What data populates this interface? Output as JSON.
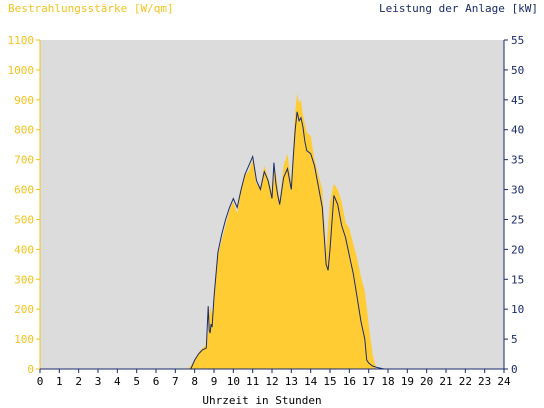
{
  "chart_data": {
    "type": "area",
    "title": "",
    "y_left_label": "Bestrahlungsstärke [W/qm]",
    "y_right_label": "Leistung der Anlage [kW]",
    "xlabel": "Uhrzeit in Stunden",
    "x_ticks": [
      "0",
      "1",
      "2",
      "3",
      "4",
      "5",
      "6",
      "7",
      "8",
      "9",
      "10",
      "11",
      "12",
      "13",
      "14",
      "15",
      "16",
      "17",
      "18",
      "19",
      "20",
      "21",
      "22",
      "23",
      "24"
    ],
    "xlim": [
      0,
      24
    ],
    "ylim_left": [
      0,
      1100
    ],
    "ylim_right": [
      0,
      55
    ],
    "y_left_ticks": [
      "0",
      "100",
      "200",
      "300",
      "400",
      "500",
      "600",
      "700",
      "800",
      "900",
      "1000",
      "1100"
    ],
    "y_right_ticks": [
      "0",
      "5",
      "10",
      "15",
      "20",
      "25",
      "30",
      "35",
      "40",
      "45",
      "50",
      "55"
    ],
    "grid": false,
    "colors": {
      "irradiance": "#ffcc33",
      "power": "#1a2a6c",
      "plot_background": "#dcdcdc",
      "left_axis": "#f5c21b",
      "right_axis": "#1a2a6c"
    },
    "series": [
      {
        "axis": "left",
        "color": "#ffcc33",
        "x": [
          0,
          7.6,
          7.8,
          8.0,
          8.2,
          8.4,
          8.6,
          8.7,
          8.8,
          8.9,
          9.0,
          9.2,
          9.4,
          9.6,
          9.8,
          10.0,
          10.2,
          10.4,
          10.6,
          10.8,
          11.0,
          11.2,
          11.4,
          11.6,
          11.8,
          12.0,
          12.1,
          12.2,
          12.3,
          12.4,
          12.6,
          12.8,
          13.0,
          13.1,
          13.2,
          13.3,
          13.4,
          13.5,
          13.6,
          13.7,
          13.8,
          14.0,
          14.2,
          14.4,
          14.6,
          14.8,
          15.0,
          15.2,
          15.4,
          15.6,
          15.8,
          16.0,
          16.2,
          16.4,
          16.6,
          16.8,
          17.0,
          17.2,
          17.4,
          24
        ],
        "y": [
          0,
          0,
          10,
          30,
          55,
          70,
          80,
          130,
          210,
          180,
          250,
          380,
          430,
          480,
          530,
          560,
          520,
          600,
          650,
          660,
          700,
          620,
          610,
          680,
          640,
          590,
          690,
          650,
          610,
          560,
          680,
          720,
          620,
          740,
          860,
          920,
          890,
          900,
          850,
          820,
          790,
          780,
          700,
          650,
          600,
          390,
          560,
          620,
          600,
          560,
          490,
          470,
          420,
          370,
          310,
          260,
          150,
          50,
          0,
          0
        ]
      },
      {
        "axis": "right",
        "color": "#1a2a6c",
        "x": [
          0,
          7.8,
          8.0,
          8.2,
          8.4,
          8.6,
          8.7,
          8.75,
          8.8,
          8.85,
          8.9,
          9.0,
          9.2,
          9.4,
          9.6,
          9.8,
          10.0,
          10.2,
          10.4,
          10.6,
          10.8,
          11.0,
          11.2,
          11.4,
          11.6,
          11.8,
          12.0,
          12.1,
          12.2,
          12.3,
          12.4,
          12.6,
          12.8,
          13.0,
          13.1,
          13.2,
          13.3,
          13.4,
          13.5,
          13.6,
          13.7,
          13.8,
          14.0,
          14.2,
          14.4,
          14.6,
          14.8,
          14.9,
          15.0,
          15.2,
          15.4,
          15.6,
          15.8,
          16.0,
          16.2,
          16.4,
          16.6,
          16.8,
          16.9,
          17.0,
          17.2,
          17.5,
          17.8,
          18.0,
          24
        ],
        "y": [
          0,
          0,
          1.5,
          2.5,
          3.2,
          3.5,
          10.5,
          6.5,
          6.0,
          7.5,
          7.0,
          12.0,
          19.5,
          22.5,
          25.0,
          27.0,
          28.5,
          27.0,
          30.0,
          32.5,
          34.0,
          35.5,
          31.5,
          30.0,
          33.0,
          31.5,
          28.5,
          34.5,
          31.0,
          29.0,
          27.5,
          32.0,
          33.5,
          30.0,
          35.5,
          40.0,
          43.0,
          41.5,
          42.0,
          40.5,
          38.0,
          36.5,
          36.0,
          34.0,
          30.5,
          27.0,
          17.5,
          16.5,
          20.0,
          29.0,
          27.5,
          24.0,
          22.0,
          19.0,
          16.0,
          12.0,
          8.0,
          5.0,
          1.5,
          1.0,
          0.5,
          0.2,
          0,
          0,
          0
        ]
      }
    ]
  }
}
